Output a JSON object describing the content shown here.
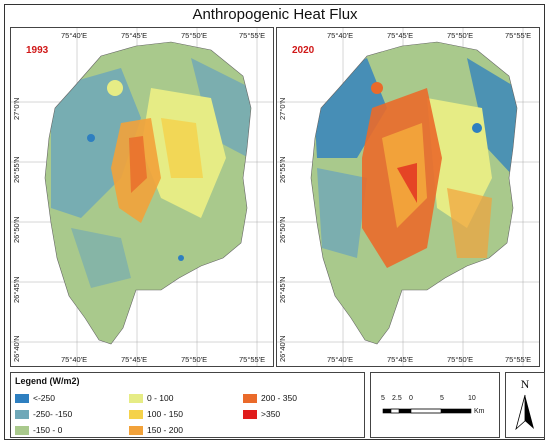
{
  "title": "Anthropogenic Heat Flux",
  "panels": [
    {
      "year": "1993"
    },
    {
      "year": "2020"
    }
  ],
  "lon_ticks": [
    "75°40'E",
    "75°45'E",
    "75°50'E",
    "75°55'E"
  ],
  "lat_ticks": [
    "27°0'N",
    "26°55'N",
    "26°50'N",
    "26°45'N",
    "26°40'N"
  ],
  "legend": {
    "title": "Legend (W/m2)",
    "items": [
      {
        "label": "<-250",
        "color": "#2e7fc0"
      },
      {
        "label": "-250- -150",
        "color": "#6fa8b8"
      },
      {
        "label": "-150 - 0",
        "color": "#a9c98c"
      },
      {
        "label": "0 - 100",
        "color": "#e6ec85"
      },
      {
        "label": "100 - 150",
        "color": "#f5d24a"
      },
      {
        "label": "150 - 200",
        "color": "#f2a23a"
      },
      {
        "label": "200 - 350",
        "color": "#ea6a2a"
      },
      {
        "label": ">350",
        "color": "#e01c1c"
      }
    ]
  },
  "scale": {
    "labels": [
      "5",
      "2.5",
      "0",
      "5",
      "10"
    ],
    "unit": "Km"
  },
  "north": "N"
}
